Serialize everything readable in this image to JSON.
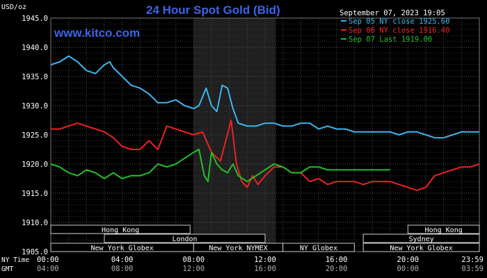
{
  "chart_data": {
    "type": "line",
    "title": "24 Hour Spot Gold (Bid)",
    "watermark": "www.kitco.com",
    "y_unit": "USD/oz",
    "timestamp": "September 07, 2023 19:05",
    "ylim": [
      1905.0,
      1945.0
    ],
    "y_ticks": [
      "1945.0",
      "1940.0",
      "1935.0",
      "1930.0",
      "1925.0",
      "1920.0",
      "1915.0",
      "1910.0",
      "1905.0"
    ],
    "x_ticks_ny": [
      "00:00",
      "04:00",
      "08:00",
      "12:00",
      "16:00",
      "20:00",
      "23:59"
    ],
    "x_ticks_gmt": [
      "04:00",
      "08:00",
      "12:00",
      "16:00",
      "20:00",
      "00:00",
      "03:59"
    ],
    "x_axis_label_ny": "NY Time",
    "x_axis_label_gmt": "GMT",
    "grid": true,
    "legend_placement": "top-right",
    "highlight_hours": [
      8.0,
      12.6
    ],
    "series": [
      {
        "name": "Sep 05 NY close 1925.60",
        "color": "#3fb6f2",
        "x": [
          0,
          0.5,
          1,
          1.5,
          2,
          2.5,
          3,
          3.3,
          3.5,
          4,
          4.5,
          5,
          5.5,
          6,
          6.5,
          7,
          7.5,
          8,
          8.3,
          8.7,
          9.0,
          9.3,
          9.6,
          9.9,
          10.2,
          10.5,
          11,
          11.5,
          12,
          12.5,
          13,
          13.5,
          14,
          14.5,
          15,
          15.5,
          16,
          16.5,
          17,
          17.5,
          18,
          18.5,
          19,
          19.5,
          20,
          20.5,
          21,
          21.5,
          22,
          22.5,
          23,
          23.5,
          24
        ],
        "y": [
          1937,
          1937.5,
          1938.5,
          1937.5,
          1936,
          1935.5,
          1937,
          1937.5,
          1936.5,
          1935,
          1933.5,
          1933,
          1932,
          1930.5,
          1930.5,
          1931,
          1930,
          1929.5,
          1930,
          1933,
          1930,
          1929,
          1933.5,
          1933,
          1929.5,
          1927,
          1926.5,
          1926.5,
          1927,
          1927,
          1926.5,
          1926.5,
          1927,
          1927,
          1926,
          1926.5,
          1926,
          1926,
          1925.5,
          1925.5,
          1925.5,
          1925.5,
          1925.5,
          1925,
          1925.5,
          1925.5,
          1925,
          1924.5,
          1924.5,
          1925,
          1925.5,
          1925.5,
          1925.5
        ]
      },
      {
        "name": "Sep 06 NY close 1916.40",
        "color": "#ee2222",
        "x": [
          0,
          0.5,
          1,
          1.5,
          2,
          2.5,
          3,
          3.5,
          4,
          4.5,
          5,
          5.5,
          6,
          6.5,
          7,
          7.5,
          8,
          8.5,
          9,
          9.5,
          9.8,
          10.1,
          10.4,
          10.7,
          11,
          11.3,
          11.6,
          12,
          12.5,
          13,
          13.5,
          14,
          14.5,
          15,
          15.5,
          16,
          16.5,
          17,
          17.5,
          18,
          18.5,
          19,
          19.5,
          20,
          20.5,
          21,
          21.5,
          22,
          22.5,
          23,
          23.5,
          24
        ],
        "y": [
          1926,
          1926,
          1926.5,
          1927,
          1926.5,
          1926,
          1925.5,
          1924.5,
          1923,
          1922.5,
          1922.5,
          1924,
          1922.5,
          1926.5,
          1926,
          1925.5,
          1925,
          1925.5,
          1922,
          1920.5,
          1924,
          1927.5,
          1920,
          1917,
          1916,
          1918,
          1916.5,
          1918,
          1919.5,
          1919.5,
          1918.5,
          1918.5,
          1917,
          1917.5,
          1916.5,
          1917,
          1917,
          1917,
          1916.5,
          1917,
          1917,
          1917,
          1916.5,
          1916,
          1915.5,
          1916,
          1918,
          1918.5,
          1919,
          1919.5,
          1919.5,
          1920
        ]
      },
      {
        "name": "Sep 07 Last 1919.00",
        "color": "#22c02a",
        "x": [
          0,
          0.5,
          1,
          1.5,
          2,
          2.5,
          3,
          3.5,
          4,
          4.5,
          5,
          5.5,
          6,
          6.5,
          7,
          7.5,
          8,
          8.3,
          8.6,
          8.8,
          9.0,
          9.3,
          9.6,
          9.9,
          10.2,
          10.5,
          11,
          11.5,
          12,
          12.5,
          13,
          13.5,
          14,
          14.5,
          15,
          15.5,
          16,
          16.5,
          17,
          17.5,
          18,
          18.5,
          19
        ],
        "y": [
          1920,
          1919.5,
          1918.5,
          1918,
          1919,
          1918.5,
          1917.5,
          1918.5,
          1917.5,
          1918,
          1918,
          1918.5,
          1920,
          1919.5,
          1920,
          1921,
          1922,
          1922.5,
          1918,
          1917,
          1922,
          1920,
          1919,
          1918.5,
          1920,
          1918,
          1917,
          1918,
          1919,
          1920,
          1919.5,
          1918.5,
          1918.5,
          1919.5,
          1919.5,
          1919,
          1919,
          1919,
          1919,
          1919,
          1919,
          1919,
          1919
        ]
      }
    ],
    "sessions": [
      {
        "label": "Hong Kong",
        "row": 0,
        "start": 0,
        "end": 7.8
      },
      {
        "label": "London",
        "row": 1,
        "start": 3.0,
        "end": 12.0
      },
      {
        "label": "New York Globex",
        "row": 2,
        "start": 0,
        "end": 8.0
      },
      {
        "label": "New York NYMEX",
        "row": 2,
        "start": 8.0,
        "end": 13.0
      },
      {
        "label": "NY Globex",
        "row": 2,
        "start": 13.0,
        "end": 17.0
      },
      {
        "label": "Hong Kong",
        "row": 0,
        "start": 20.0,
        "end": 24.0
      },
      {
        "label": "Sydney",
        "row": 1,
        "start": 17.5,
        "end": 24.0
      },
      {
        "label": "New York Globex",
        "row": 2,
        "start": 17.5,
        "end": 24.0
      }
    ]
  }
}
